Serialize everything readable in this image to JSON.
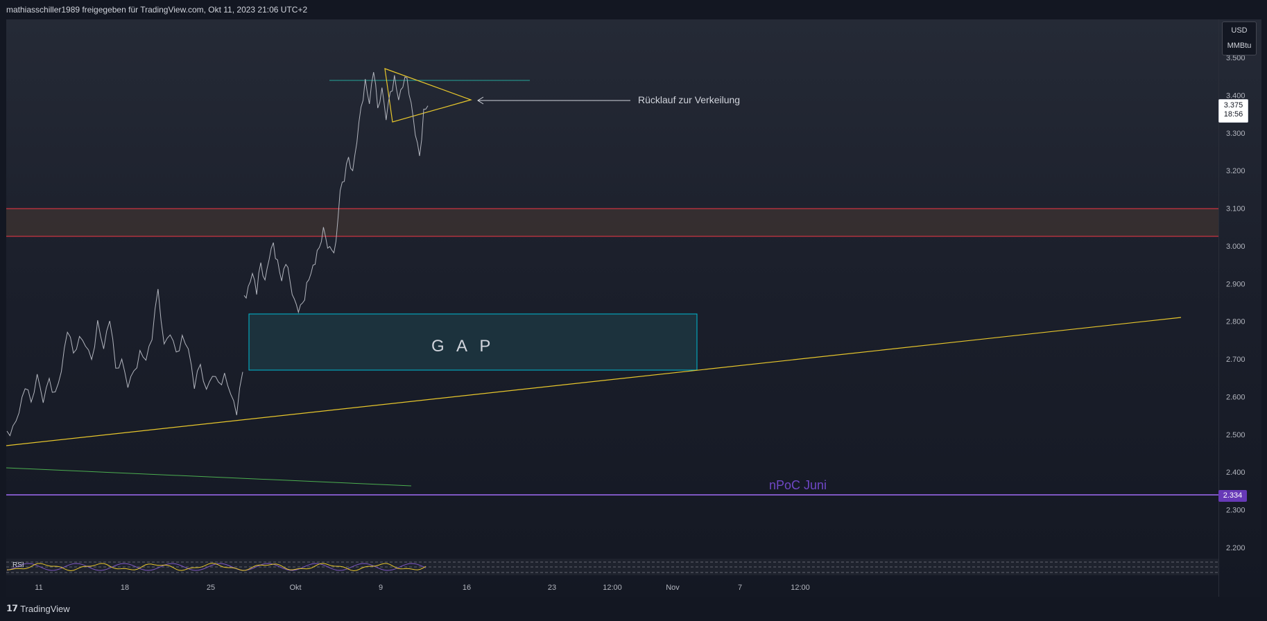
{
  "header": {
    "text": "mathiasschiller1989 freigegeben für TradingView.com, Okt 11, 2023 21:06 UTC+2"
  },
  "footer": {
    "brand": "TradingView",
    "logo_icon": "tradingview-logo-icon"
  },
  "price_axis": {
    "unit_line1": "USD",
    "unit_line2": "MMBtu"
  },
  "current_price": {
    "value": "3.375",
    "countdown": "18:56"
  },
  "npoc_price": {
    "value": "2.334"
  },
  "annotations": {
    "rucklauf": "Rücklauf zur Verkeilung",
    "gap": "G A P",
    "npoc": "nPoC Juni"
  },
  "indicator": {
    "name": "RSI"
  },
  "colors": {
    "background": "#131722",
    "price_line": "#b2b5be",
    "support_zone_line": "#f23645",
    "support_zone_fill": "#3a3030",
    "trendline": "#e8c72c",
    "gap_border": "#00bcd4",
    "gap_fill": "#1e3a44",
    "npoc_line": "#7e57c2",
    "green_line": "#26a69a",
    "light_green_line": "#4caf50",
    "rsi_line": "#e8c72c",
    "rsi_secondary": "#7e57c2"
  },
  "chart_data": {
    "type": "line",
    "title": "",
    "xlabel": "",
    "ylabel": "",
    "x_ticks": [
      "11",
      "18",
      "25",
      "Okt",
      "9",
      "16",
      "23",
      "12:00",
      "Nov",
      "7",
      "12:00"
    ],
    "y_ticks": [
      "3.500",
      "3.400",
      "3.300",
      "3.200",
      "3.100",
      "3.000",
      "2.900",
      "2.800",
      "2.700",
      "2.600",
      "2.500",
      "2.400",
      "2.300",
      "2.200"
    ],
    "ylim": [
      2.17,
      3.53
    ],
    "grid": false,
    "series": [
      {
        "values": [
          2.5,
          2.52,
          2.56,
          2.63,
          2.58,
          2.66,
          2.59,
          2.64,
          2.61,
          2.67,
          2.78,
          2.71,
          2.76,
          2.74,
          2.69,
          2.8,
          2.73,
          2.81,
          2.67,
          2.7,
          2.63,
          2.66,
          2.72,
          2.7,
          2.76,
          2.88,
          2.74,
          2.77,
          2.71,
          2.76,
          2.73,
          2.63,
          2.68,
          2.62,
          2.66,
          2.63,
          2.66,
          2.61,
          2.56,
          2.66,
          2.86,
          2.89,
          2.93,
          2.88,
          2.95,
          2.91,
          2.97,
          3.0,
          2.96,
          2.91,
          2.96,
          2.9,
          2.86,
          2.83,
          2.84,
          2.9,
          2.93,
          2.96,
          2.99,
          3.05,
          3.0,
          2.98,
          3.01,
          3.15,
          3.18,
          3.23,
          3.2,
          3.28,
          3.36,
          3.44,
          3.38,
          3.47,
          3.36,
          3.42,
          3.34,
          3.4,
          3.45,
          3.39,
          3.43,
          3.44,
          3.38,
          3.3,
          3.23,
          3.36,
          3.375
        ]
      }
    ]
  }
}
